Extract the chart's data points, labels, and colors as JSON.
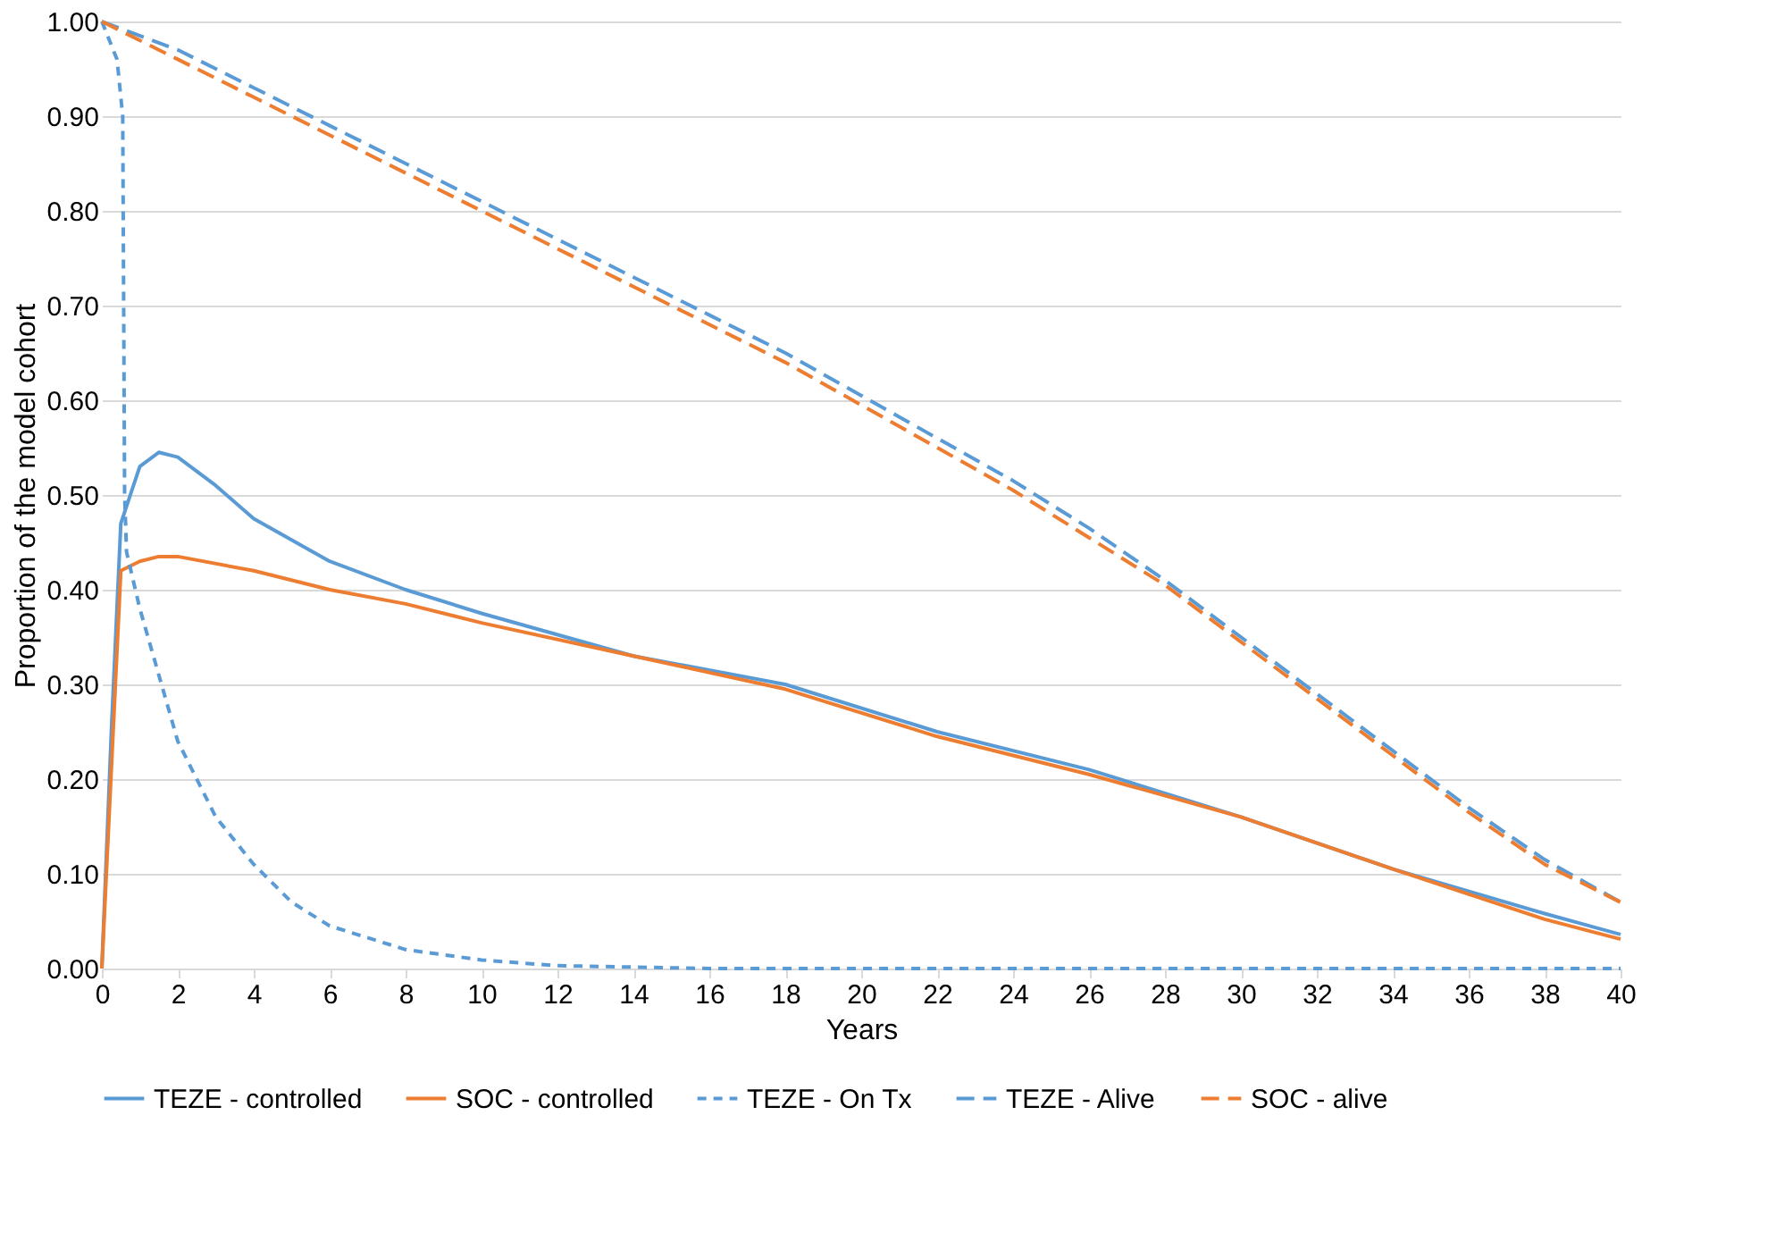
{
  "chart_data": {
    "type": "line",
    "xlabel": "Years",
    "ylabel": "Proportion of the model cohort",
    "xlim": [
      0,
      40
    ],
    "xticks": [
      0,
      2,
      4,
      6,
      8,
      10,
      12,
      14,
      16,
      18,
      20,
      22,
      24,
      26,
      28,
      30,
      32,
      34,
      36,
      38,
      40
    ],
    "ylim": [
      0,
      1
    ],
    "yticks": [
      {
        "value": 0,
        "label": "0.00"
      },
      {
        "value": 0.1,
        "label": "0.10"
      },
      {
        "value": 0.2,
        "label": "0.20"
      },
      {
        "value": 0.3,
        "label": "0.30"
      },
      {
        "value": 0.4,
        "label": "0.40"
      },
      {
        "value": 0.5,
        "label": "0.50"
      },
      {
        "value": 0.6,
        "label": "0.60"
      },
      {
        "value": 0.7,
        "label": "0.70"
      },
      {
        "value": 0.8,
        "label": "0.80"
      },
      {
        "value": 0.9,
        "label": "0.90"
      },
      {
        "value": 1,
        "label": "1.00"
      }
    ],
    "grid": "y",
    "legend": "bottom",
    "marker": "none",
    "series": [
      {
        "name": "TEZE - controlled",
        "color": "#5b9bd5",
        "line_style": "solid",
        "x": [
          0,
          0.25,
          0.5,
          1,
          1.5,
          2,
          3,
          4,
          6,
          8,
          10,
          14,
          18,
          22,
          26,
          30,
          34,
          38,
          40
        ],
        "values": [
          0,
          0.25,
          0.47,
          0.53,
          0.545,
          0.54,
          0.51,
          0.475,
          0.43,
          0.4,
          0.375,
          0.33,
          0.3,
          0.25,
          0.21,
          0.16,
          0.105,
          0.058,
          0.036
        ]
      },
      {
        "name": "SOC - controlled",
        "color": "#ed7d31",
        "line_style": "solid",
        "x": [
          0,
          0.5,
          1,
          1.5,
          2,
          4,
          6,
          8,
          10,
          14,
          18,
          22,
          26,
          30,
          34,
          38,
          40
        ],
        "values": [
          0,
          0.42,
          0.43,
          0.435,
          0.435,
          0.42,
          0.4,
          0.385,
          0.365,
          0.33,
          0.295,
          0.245,
          0.205,
          0.16,
          0.105,
          0.052,
          0.031
        ]
      },
      {
        "name": "TEZE - On Tx",
        "color": "#5b9bd5",
        "line_style": "dotted",
        "x": [
          0,
          0.4,
          0.55,
          0.6,
          0.65,
          1,
          2,
          3,
          4,
          5,
          6,
          8,
          10,
          12,
          16,
          40
        ],
        "values": [
          1,
          0.96,
          0.9,
          0.5,
          0.44,
          0.38,
          0.24,
          0.16,
          0.11,
          0.07,
          0.045,
          0.02,
          0.009,
          0.003,
          0,
          0
        ]
      },
      {
        "name": "TEZE - Alive",
        "color": "#5b9bd5",
        "line_style": "dashed",
        "x": [
          0,
          2,
          4,
          6,
          8,
          10,
          12,
          14,
          16,
          18,
          20,
          22,
          24,
          26,
          28,
          30,
          32,
          34,
          36,
          38,
          40
        ],
        "values": [
          1,
          0.97,
          0.93,
          0.89,
          0.85,
          0.81,
          0.77,
          0.73,
          0.69,
          0.65,
          0.605,
          0.56,
          0.515,
          0.465,
          0.41,
          0.35,
          0.29,
          0.23,
          0.17,
          0.115,
          0.07
        ]
      },
      {
        "name": "SOC - alive",
        "color": "#ed7d31",
        "line_style": "dashed",
        "x": [
          0,
          2,
          4,
          6,
          8,
          10,
          12,
          14,
          16,
          18,
          20,
          22,
          24,
          26,
          28,
          30,
          32,
          34,
          36,
          38,
          40
        ],
        "values": [
          1,
          0.96,
          0.92,
          0.88,
          0.84,
          0.8,
          0.76,
          0.72,
          0.68,
          0.64,
          0.595,
          0.55,
          0.505,
          0.455,
          0.405,
          0.345,
          0.285,
          0.225,
          0.165,
          0.11,
          0.07
        ]
      }
    ]
  }
}
